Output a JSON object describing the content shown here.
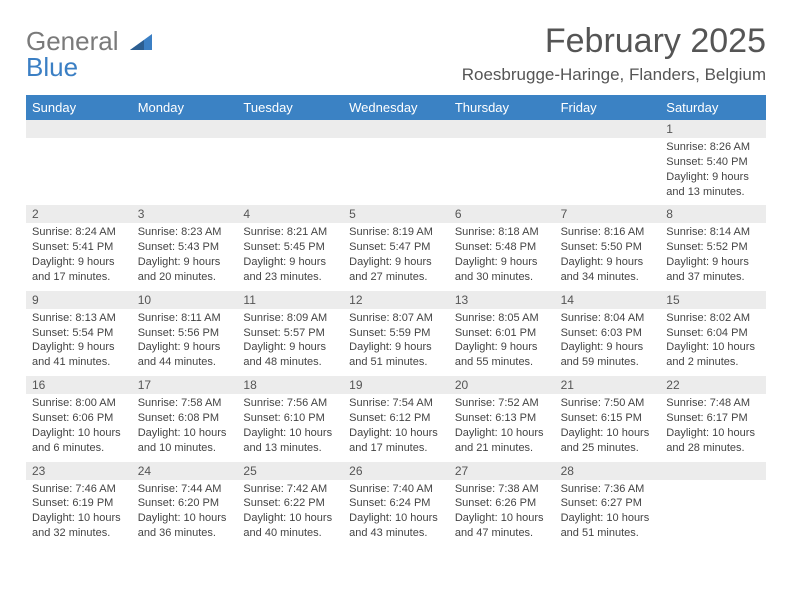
{
  "brand": {
    "part1": "General",
    "part2": "Blue"
  },
  "title": "February 2025",
  "location": "Roesbrugge-Haringe, Flanders, Belgium",
  "colors": {
    "header_bg": "#3b82c4",
    "header_text": "#ffffff",
    "daynum_bg": "#ececec",
    "body_bg": "#ffffff",
    "text": "#444444",
    "title_text": "#555555",
    "logo_gray": "#7a7a7a",
    "logo_blue": "#3b7fc4"
  },
  "weekdays": [
    "Sunday",
    "Monday",
    "Tuesday",
    "Wednesday",
    "Thursday",
    "Friday",
    "Saturday"
  ],
  "weeks": [
    [
      {
        "n": "",
        "sr": "",
        "ss": "",
        "dl": ""
      },
      {
        "n": "",
        "sr": "",
        "ss": "",
        "dl": ""
      },
      {
        "n": "",
        "sr": "",
        "ss": "",
        "dl": ""
      },
      {
        "n": "",
        "sr": "",
        "ss": "",
        "dl": ""
      },
      {
        "n": "",
        "sr": "",
        "ss": "",
        "dl": ""
      },
      {
        "n": "",
        "sr": "",
        "ss": "",
        "dl": ""
      },
      {
        "n": "1",
        "sr": "Sunrise: 8:26 AM",
        "ss": "Sunset: 5:40 PM",
        "dl": "Daylight: 9 hours and 13 minutes."
      }
    ],
    [
      {
        "n": "2",
        "sr": "Sunrise: 8:24 AM",
        "ss": "Sunset: 5:41 PM",
        "dl": "Daylight: 9 hours and 17 minutes."
      },
      {
        "n": "3",
        "sr": "Sunrise: 8:23 AM",
        "ss": "Sunset: 5:43 PM",
        "dl": "Daylight: 9 hours and 20 minutes."
      },
      {
        "n": "4",
        "sr": "Sunrise: 8:21 AM",
        "ss": "Sunset: 5:45 PM",
        "dl": "Daylight: 9 hours and 23 minutes."
      },
      {
        "n": "5",
        "sr": "Sunrise: 8:19 AM",
        "ss": "Sunset: 5:47 PM",
        "dl": "Daylight: 9 hours and 27 minutes."
      },
      {
        "n": "6",
        "sr": "Sunrise: 8:18 AM",
        "ss": "Sunset: 5:48 PM",
        "dl": "Daylight: 9 hours and 30 minutes."
      },
      {
        "n": "7",
        "sr": "Sunrise: 8:16 AM",
        "ss": "Sunset: 5:50 PM",
        "dl": "Daylight: 9 hours and 34 minutes."
      },
      {
        "n": "8",
        "sr": "Sunrise: 8:14 AM",
        "ss": "Sunset: 5:52 PM",
        "dl": "Daylight: 9 hours and 37 minutes."
      }
    ],
    [
      {
        "n": "9",
        "sr": "Sunrise: 8:13 AM",
        "ss": "Sunset: 5:54 PM",
        "dl": "Daylight: 9 hours and 41 minutes."
      },
      {
        "n": "10",
        "sr": "Sunrise: 8:11 AM",
        "ss": "Sunset: 5:56 PM",
        "dl": "Daylight: 9 hours and 44 minutes."
      },
      {
        "n": "11",
        "sr": "Sunrise: 8:09 AM",
        "ss": "Sunset: 5:57 PM",
        "dl": "Daylight: 9 hours and 48 minutes."
      },
      {
        "n": "12",
        "sr": "Sunrise: 8:07 AM",
        "ss": "Sunset: 5:59 PM",
        "dl": "Daylight: 9 hours and 51 minutes."
      },
      {
        "n": "13",
        "sr": "Sunrise: 8:05 AM",
        "ss": "Sunset: 6:01 PM",
        "dl": "Daylight: 9 hours and 55 minutes."
      },
      {
        "n": "14",
        "sr": "Sunrise: 8:04 AM",
        "ss": "Sunset: 6:03 PM",
        "dl": "Daylight: 9 hours and 59 minutes."
      },
      {
        "n": "15",
        "sr": "Sunrise: 8:02 AM",
        "ss": "Sunset: 6:04 PM",
        "dl": "Daylight: 10 hours and 2 minutes."
      }
    ],
    [
      {
        "n": "16",
        "sr": "Sunrise: 8:00 AM",
        "ss": "Sunset: 6:06 PM",
        "dl": "Daylight: 10 hours and 6 minutes."
      },
      {
        "n": "17",
        "sr": "Sunrise: 7:58 AM",
        "ss": "Sunset: 6:08 PM",
        "dl": "Daylight: 10 hours and 10 minutes."
      },
      {
        "n": "18",
        "sr": "Sunrise: 7:56 AM",
        "ss": "Sunset: 6:10 PM",
        "dl": "Daylight: 10 hours and 13 minutes."
      },
      {
        "n": "19",
        "sr": "Sunrise: 7:54 AM",
        "ss": "Sunset: 6:12 PM",
        "dl": "Daylight: 10 hours and 17 minutes."
      },
      {
        "n": "20",
        "sr": "Sunrise: 7:52 AM",
        "ss": "Sunset: 6:13 PM",
        "dl": "Daylight: 10 hours and 21 minutes."
      },
      {
        "n": "21",
        "sr": "Sunrise: 7:50 AM",
        "ss": "Sunset: 6:15 PM",
        "dl": "Daylight: 10 hours and 25 minutes."
      },
      {
        "n": "22",
        "sr": "Sunrise: 7:48 AM",
        "ss": "Sunset: 6:17 PM",
        "dl": "Daylight: 10 hours and 28 minutes."
      }
    ],
    [
      {
        "n": "23",
        "sr": "Sunrise: 7:46 AM",
        "ss": "Sunset: 6:19 PM",
        "dl": "Daylight: 10 hours and 32 minutes."
      },
      {
        "n": "24",
        "sr": "Sunrise: 7:44 AM",
        "ss": "Sunset: 6:20 PM",
        "dl": "Daylight: 10 hours and 36 minutes."
      },
      {
        "n": "25",
        "sr": "Sunrise: 7:42 AM",
        "ss": "Sunset: 6:22 PM",
        "dl": "Daylight: 10 hours and 40 minutes."
      },
      {
        "n": "26",
        "sr": "Sunrise: 7:40 AM",
        "ss": "Sunset: 6:24 PM",
        "dl": "Daylight: 10 hours and 43 minutes."
      },
      {
        "n": "27",
        "sr": "Sunrise: 7:38 AM",
        "ss": "Sunset: 6:26 PM",
        "dl": "Daylight: 10 hours and 47 minutes."
      },
      {
        "n": "28",
        "sr": "Sunrise: 7:36 AM",
        "ss": "Sunset: 6:27 PM",
        "dl": "Daylight: 10 hours and 51 minutes."
      },
      {
        "n": "",
        "sr": "",
        "ss": "",
        "dl": ""
      }
    ]
  ]
}
